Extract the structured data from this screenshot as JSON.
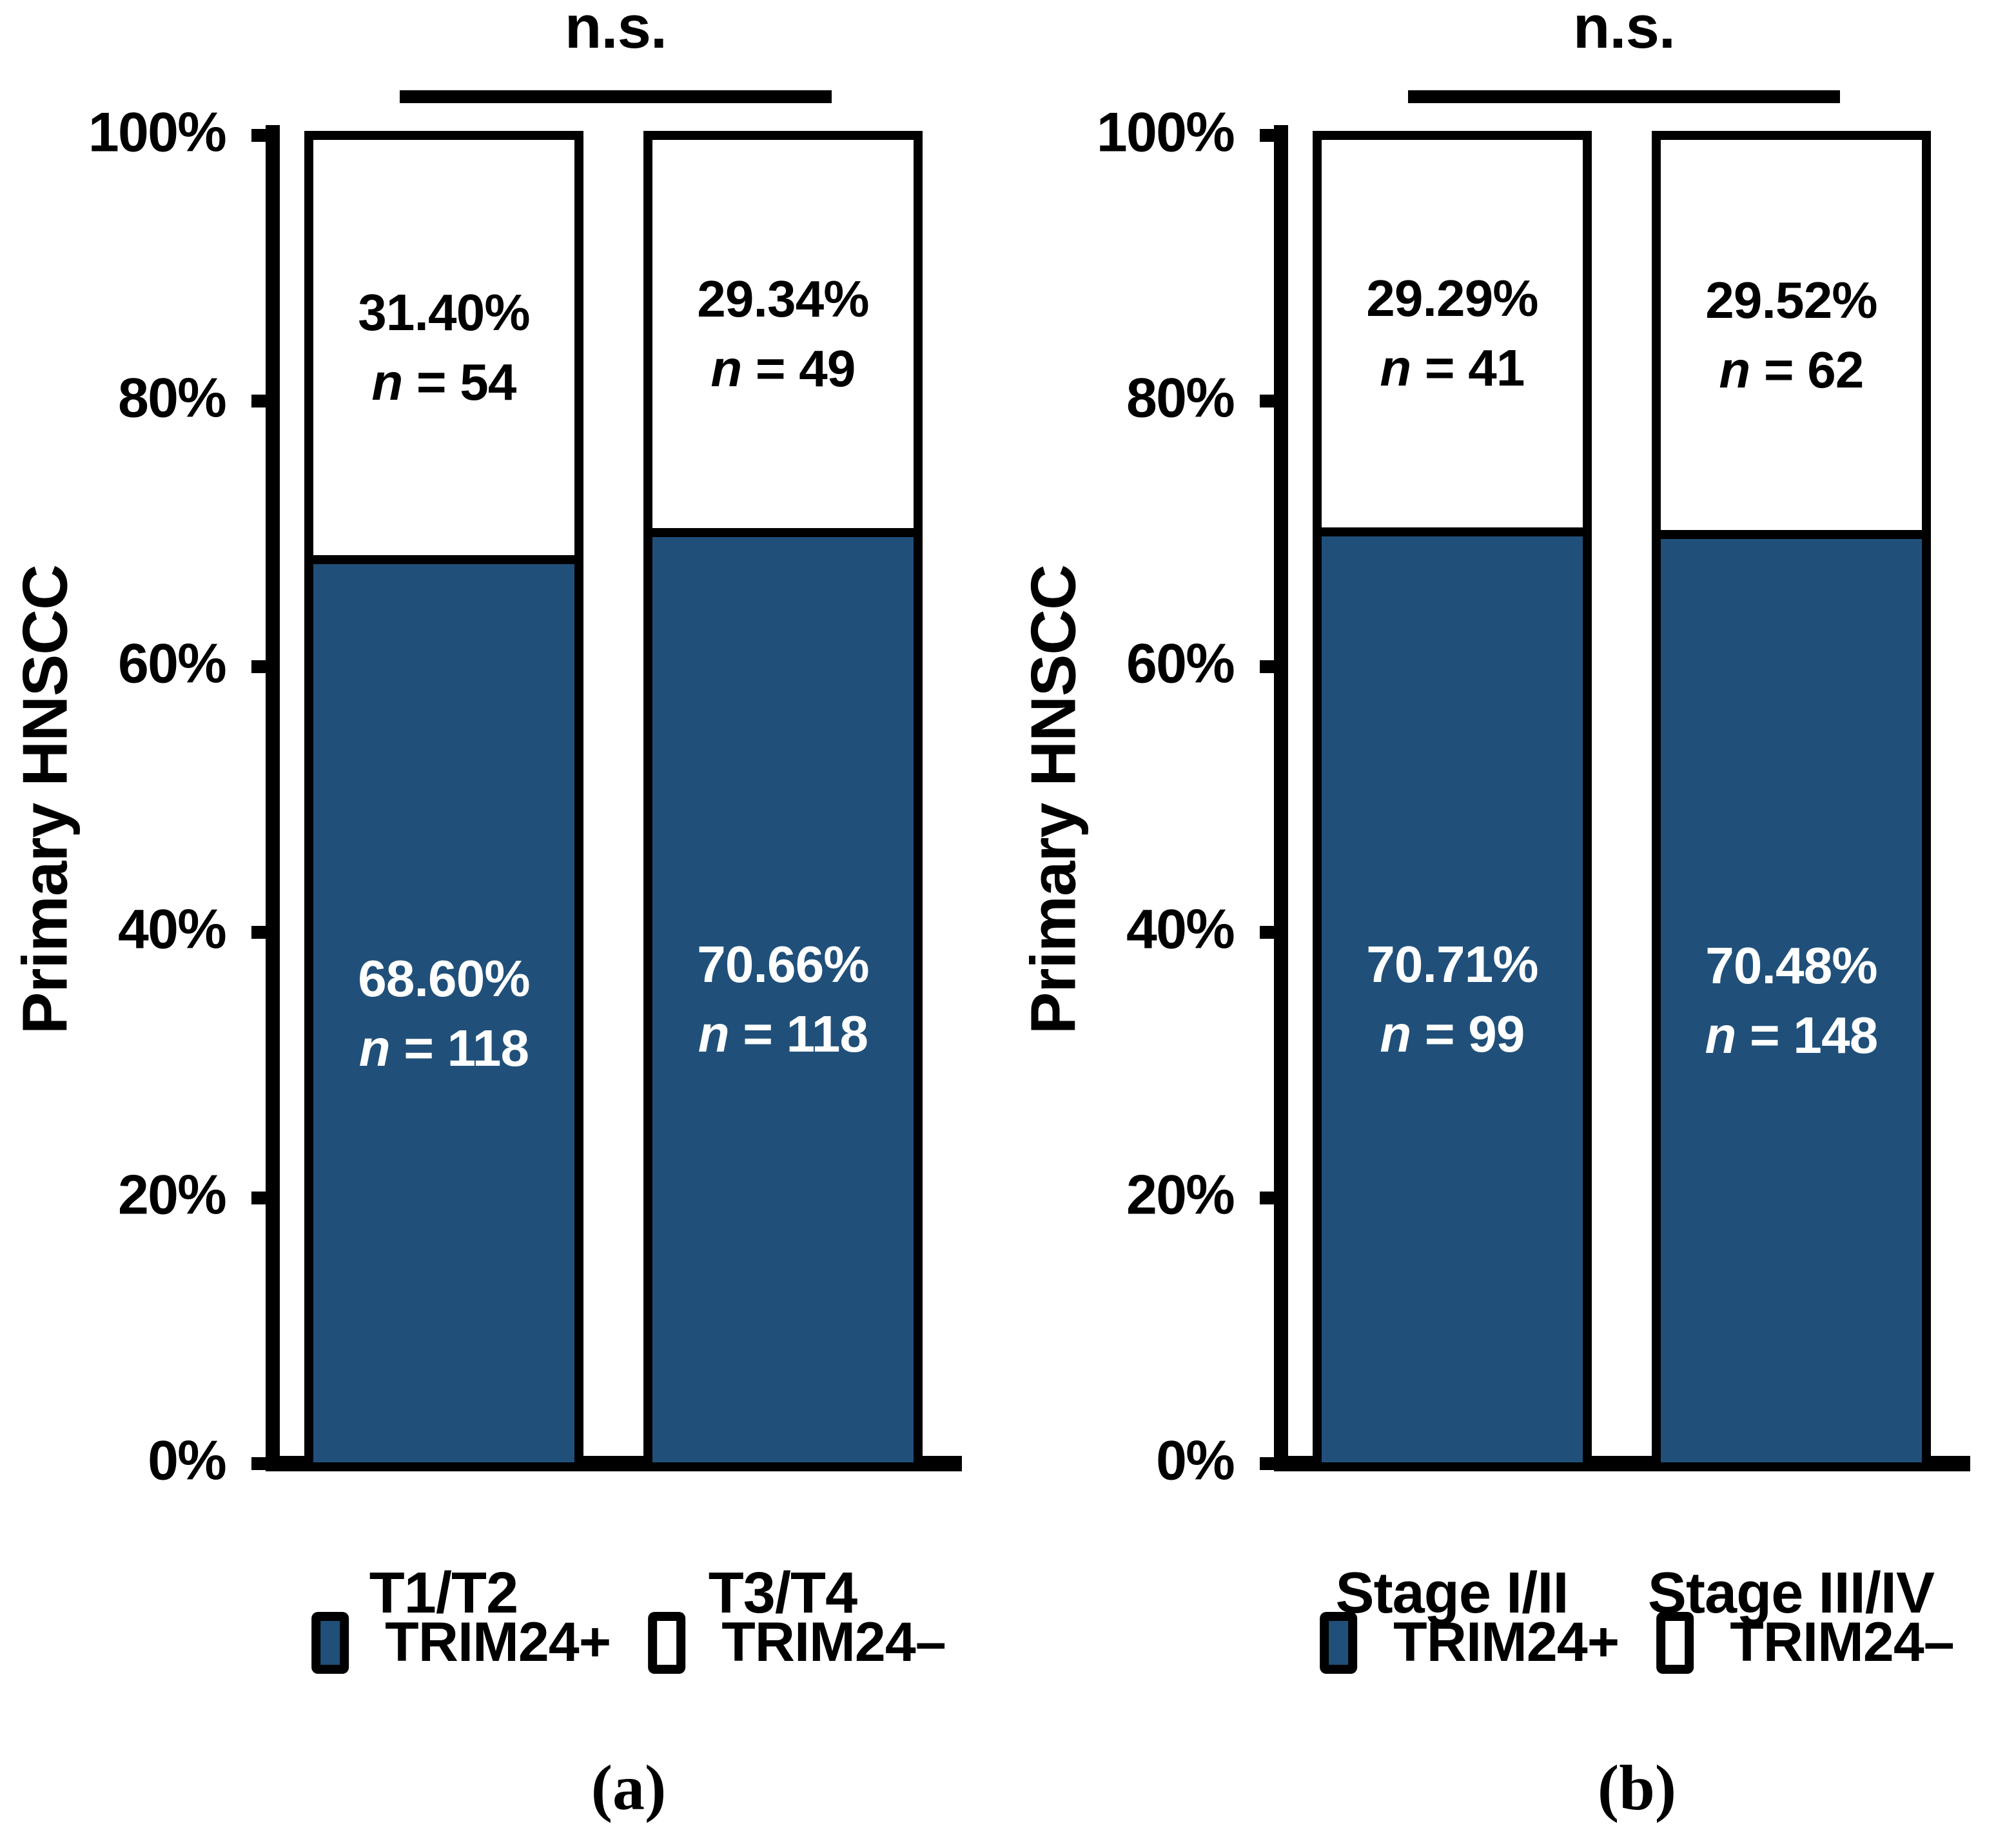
{
  "figure": {
    "panels": [
      {
        "letter": "(a)",
        "ns_label": "n.s.",
        "y_axis_label": "Primary HNSCC",
        "y_ticks": [
          "100%",
          "80%",
          "60%",
          "40%",
          "20%",
          "0%"
        ],
        "categories": [
          "T1/T2",
          "T3/T4"
        ],
        "bars": [
          {
            "white": {
              "pct": "31.40%",
              "n_italic": "n",
              "n_rest": " = 54"
            },
            "blue": {
              "pct": "68.60%",
              "n_italic": "n",
              "n_rest": " = 118"
            }
          },
          {
            "white": {
              "pct": "29.34%",
              "n_italic": "n",
              "n_rest": " = 49"
            },
            "blue": {
              "pct": "70.66%",
              "n_italic": "n",
              "n_rest": " = 118"
            }
          }
        ],
        "legend": [
          {
            "label": "TRIM24+",
            "color": "#20507A"
          },
          {
            "label": "TRIM24–",
            "color": "#FFFFFF"
          }
        ]
      },
      {
        "letter": "(b)",
        "ns_label": "n.s.",
        "y_axis_label": "Primary HNSCC",
        "y_ticks": [
          "100%",
          "80%",
          "60%",
          "40%",
          "20%",
          "0%"
        ],
        "categories": [
          "Stage I/II",
          "Stage III/IV"
        ],
        "bars": [
          {
            "white": {
              "pct": "29.29%",
              "n_italic": "n",
              "n_rest": " = 41"
            },
            "blue": {
              "pct": "70.71%",
              "n_italic": "n",
              "n_rest": " = 99"
            }
          },
          {
            "white": {
              "pct": "29.52%",
              "n_italic": "n",
              "n_rest": " = 62"
            },
            "blue": {
              "pct": "70.48%",
              "n_italic": "n",
              "n_rest": " = 148"
            }
          }
        ],
        "legend": [
          {
            "label": "TRIM24+",
            "color": "#20507A"
          },
          {
            "label": "TRIM24–",
            "color": "#FFFFFF"
          }
        ]
      }
    ]
  },
  "chart_data": [
    {
      "type": "bar",
      "stacked": true,
      "categories": [
        "T1/T2",
        "T3/T4"
      ],
      "series": [
        {
          "name": "TRIM24+",
          "values": [
            68.6,
            70.66
          ],
          "counts": [
            118,
            118
          ],
          "color": "#20507A"
        },
        {
          "name": "TRIM24–",
          "values": [
            31.4,
            29.34
          ],
          "counts": [
            54,
            49
          ],
          "color": "#FFFFFF"
        }
      ],
      "ylabel": "Primary HNSCC",
      "ylim": [
        0,
        100
      ],
      "yticks": [
        "0%",
        "20%",
        "40%",
        "60%",
        "80%",
        "100%"
      ],
      "significance": "n.s.",
      "grid": false,
      "legend_position": "bottom",
      "panel_label": "(a)"
    },
    {
      "type": "bar",
      "stacked": true,
      "categories": [
        "Stage I/II",
        "Stage III/IV"
      ],
      "series": [
        {
          "name": "TRIM24+",
          "values": [
            70.71,
            70.48
          ],
          "counts": [
            99,
            148
          ],
          "color": "#20507A"
        },
        {
          "name": "TRIM24–",
          "values": [
            29.29,
            29.52
          ],
          "counts": [
            41,
            62
          ],
          "color": "#FFFFFF"
        }
      ],
      "ylabel": "Primary HNSCC",
      "ylim": [
        0,
        100
      ],
      "yticks": [
        "0%",
        "20%",
        "40%",
        "60%",
        "80%",
        "100%"
      ],
      "significance": "n.s.",
      "grid": false,
      "legend_position": "bottom",
      "panel_label": "(b)"
    }
  ]
}
